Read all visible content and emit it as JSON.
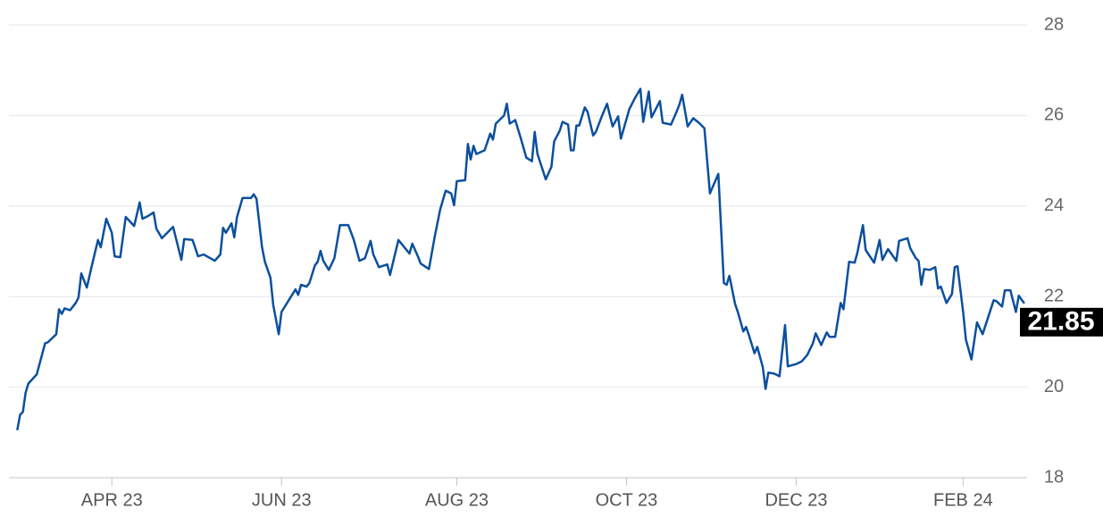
{
  "chart_data": {
    "type": "line",
    "x": [
      0,
      1,
      2,
      3,
      4,
      7,
      10,
      11,
      14,
      15,
      16,
      17,
      19,
      21,
      22,
      23,
      25,
      27,
      29,
      30,
      32,
      34,
      35,
      37,
      39,
      42,
      44,
      45,
      47,
      49,
      50,
      52,
      56,
      59,
      60,
      63,
      65,
      67,
      71,
      73,
      74,
      75,
      77,
      78,
      79,
      81,
      84,
      85,
      86,
      88,
      89,
      91,
      92,
      94,
      95,
      99,
      100,
      101,
      102,
      104,
      105,
      107,
      108,
      109,
      110,
      112,
      114,
      116,
      119,
      121,
      123,
      125,
      127,
      128,
      130,
      133,
      134,
      137,
      141,
      142,
      144,
      145,
      148,
      150,
      152,
      154,
      156,
      157,
      158,
      161,
      162,
      163,
      164,
      165,
      168,
      170,
      171,
      172,
      175,
      176,
      177,
      179,
      181,
      183,
      185,
      186,
      187,
      190,
      192,
      193,
      195,
      196,
      198,
      199,
      200,
      201,
      202,
      204,
      205,
      207,
      208,
      210,
      212,
      214,
      216,
      217,
      220,
      222,
      224,
      225,
      227,
      228,
      231,
      232,
      235,
      237,
      238,
      239,
      241,
      243,
      245,
      247,
      249,
      252,
      254,
      255,
      256,
      258,
      259,
      261,
      262,
      263,
      265,
      266,
      268,
      269,
      270,
      272,
      274,
      276,
      277,
      280,
      282,
      284,
      286,
      287,
      289,
      291,
      292,
      294,
      296,
      297,
      299,
      301,
      302,
      304,
      305,
      308,
      310,
      311,
      313,
      316,
      317,
      320,
      321,
      323,
      324,
      325,
      326,
      328,
      330,
      331,
      332,
      334,
      336,
      337,
      338,
      340,
      341,
      343,
      345,
      347,
      351,
      352,
      354,
      355,
      357,
      359,
      360,
      362
    ],
    "series": [
      {
        "color": "#0b4f9e",
        "values": [
          19.05,
          19.39,
          19.45,
          19.88,
          20.08,
          20.28,
          20.97,
          20.99,
          21.17,
          21.72,
          21.62,
          21.74,
          21.7,
          21.86,
          21.98,
          22.51,
          22.2,
          22.73,
          23.25,
          23.09,
          23.72,
          23.41,
          22.89,
          22.87,
          23.76,
          23.56,
          24.08,
          23.72,
          23.78,
          23.86,
          23.5,
          23.29,
          23.54,
          22.81,
          23.27,
          23.25,
          22.89,
          22.93,
          22.79,
          22.93,
          23.52,
          23.41,
          23.62,
          23.31,
          23.76,
          24.18,
          24.18,
          24.26,
          24.16,
          23.09,
          22.77,
          22.42,
          21.82,
          21.17,
          21.66,
          22.06,
          22.16,
          22.04,
          22.26,
          22.22,
          22.3,
          22.69,
          22.77,
          23.01,
          22.79,
          22.59,
          22.85,
          23.58,
          23.58,
          23.25,
          22.79,
          22.85,
          23.23,
          22.93,
          22.65,
          22.71,
          22.48,
          23.25,
          22.95,
          23.17,
          22.89,
          22.73,
          22.61,
          23.31,
          23.92,
          24.34,
          24.28,
          24.02,
          24.55,
          24.57,
          25.37,
          25.03,
          25.33,
          25.15,
          25.23,
          25.6,
          25.47,
          25.82,
          26.0,
          26.26,
          25.82,
          25.9,
          25.5,
          25.07,
          24.99,
          25.64,
          25.15,
          24.59,
          24.87,
          25.43,
          25.66,
          25.86,
          25.8,
          25.23,
          25.23,
          25.78,
          25.78,
          26.18,
          26.08,
          25.56,
          25.64,
          25.96,
          26.26,
          25.76,
          25.98,
          25.49,
          26.14,
          26.38,
          26.59,
          25.86,
          26.53,
          25.96,
          26.32,
          25.84,
          25.8,
          26.08,
          26.24,
          26.46,
          25.76,
          25.94,
          25.84,
          25.72,
          24.28,
          24.71,
          22.3,
          22.26,
          22.46,
          21.84,
          21.66,
          21.23,
          21.33,
          21.15,
          20.75,
          20.89,
          20.44,
          19.96,
          20.32,
          20.3,
          20.24,
          21.37,
          20.46,
          20.51,
          20.57,
          20.71,
          20.97,
          21.19,
          20.93,
          21.21,
          21.11,
          21.11,
          21.86,
          21.72,
          22.77,
          22.75,
          22.97,
          23.58,
          23.03,
          22.75,
          23.25,
          22.81,
          23.05,
          22.79,
          23.23,
          23.29,
          23.07,
          22.85,
          22.79,
          22.26,
          22.61,
          22.59,
          22.65,
          22.18,
          22.22,
          21.86,
          22.06,
          22.65,
          22.67,
          21.66,
          21.05,
          20.61,
          21.43,
          21.17,
          21.92,
          21.9,
          21.78,
          22.14,
          22.14,
          21.66,
          22.02,
          21.85
        ]
      }
    ],
    "xlim": [
      -3,
      363
    ],
    "xticks": [
      {
        "value": 34,
        "label": "APR 23"
      },
      {
        "value": 95,
        "label": "JUN 23"
      },
      {
        "value": 158,
        "label": "AUG 23"
      },
      {
        "value": 219,
        "label": "OCT 23"
      },
      {
        "value": 280,
        "label": "DEC 23"
      },
      {
        "value": 340,
        "label": "FEB 24"
      }
    ],
    "ylim": [
      18,
      28
    ],
    "yticks": [
      18,
      20,
      22,
      24,
      26,
      28
    ],
    "grid": true
  }
}
